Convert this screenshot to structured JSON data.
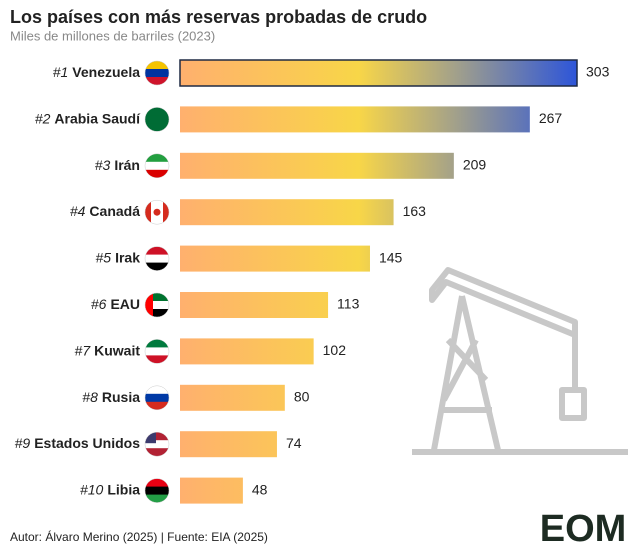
{
  "chart_data": {
    "type": "bar",
    "title": "Los países con más reservas probadas de crudo",
    "subtitle": "Miles de millones de barriles (2023)",
    "ranks": [
      "#1",
      "#2",
      "#3",
      "#4",
      "#5",
      "#6",
      "#7",
      "#8",
      "#9",
      "#10"
    ],
    "categories": [
      "Venezuela",
      "Arabia Saudí",
      "Irán",
      "Canadá",
      "Irak",
      "EAU",
      "Kuwait",
      "Rusia",
      "Estados Unidos",
      "Libia"
    ],
    "values": [
      303,
      267,
      209,
      163,
      145,
      113,
      102,
      80,
      74,
      48
    ],
    "gradient_colors": [
      "#ffb06e",
      "#f8d648",
      "#a09f8c",
      "#2d55d9"
    ],
    "source": "Autor: Álvaro Merino (2025) | Fuente: EIA (2025)",
    "logo": "EOM"
  }
}
